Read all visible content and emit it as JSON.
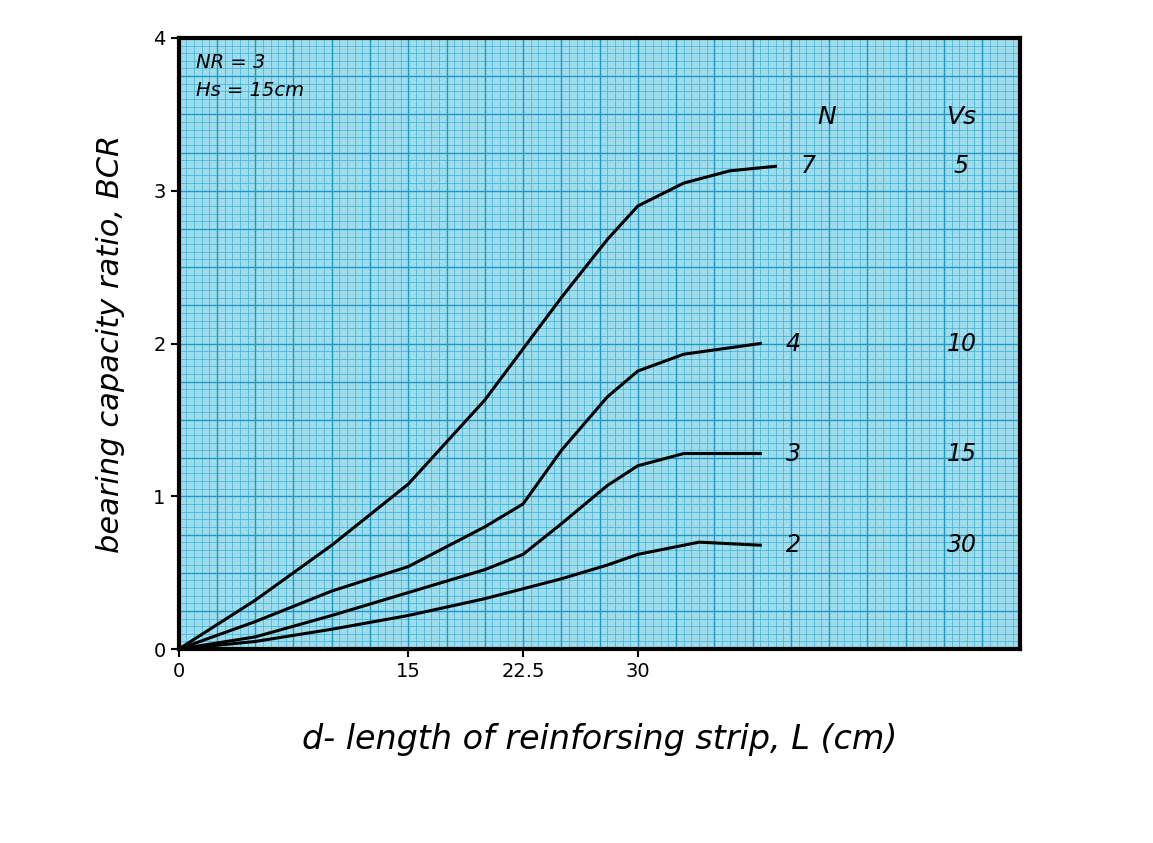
{
  "chart_data": {
    "type": "line",
    "header_texts": [
      "NR = 3",
      "Hs = 15cm"
    ],
    "column_headers": [
      "N",
      "Vs"
    ],
    "x_label": "d- length of reinforsing strip, L (cm)",
    "y_label": "bearing capacity ratio, BCR",
    "xlim": [
      0,
      55
    ],
    "xticks": [
      0,
      15,
      22.5,
      30
    ],
    "ylim": [
      0,
      4
    ],
    "yticks": [
      0,
      1,
      2,
      3,
      4
    ],
    "grid": true,
    "series": [
      {
        "name": "7",
        "vs": 5,
        "color": "#000000",
        "x": [
          0,
          5,
          10,
          15,
          20,
          25,
          28,
          30,
          33,
          36,
          39
        ],
        "values": [
          0,
          0.32,
          0.68,
          1.08,
          1.63,
          2.3,
          2.68,
          2.9,
          3.05,
          3.13,
          3.16
        ]
      },
      {
        "name": "4",
        "vs": 10,
        "color": "#000000",
        "x": [
          0,
          5,
          10,
          15,
          20,
          22.5,
          25,
          28,
          30,
          33,
          38
        ],
        "values": [
          0,
          0.18,
          0.38,
          0.54,
          0.8,
          0.95,
          1.3,
          1.65,
          1.82,
          1.93,
          2.0
        ]
      },
      {
        "name": "3",
        "vs": 15,
        "color": "#000000",
        "x": [
          0,
          5,
          10,
          15,
          20,
          22.5,
          25,
          28,
          30,
          33,
          38
        ],
        "values": [
          0,
          0.08,
          0.22,
          0.37,
          0.52,
          0.62,
          0.82,
          1.07,
          1.2,
          1.28,
          1.28
        ]
      },
      {
        "name": "2",
        "vs": 30,
        "color": "#000000",
        "x": [
          0,
          5,
          10,
          15,
          20,
          25,
          28,
          30,
          34,
          38
        ],
        "values": [
          0,
          0.05,
          0.13,
          0.22,
          0.33,
          0.46,
          0.55,
          0.62,
          0.7,
          0.68
        ]
      }
    ]
  }
}
